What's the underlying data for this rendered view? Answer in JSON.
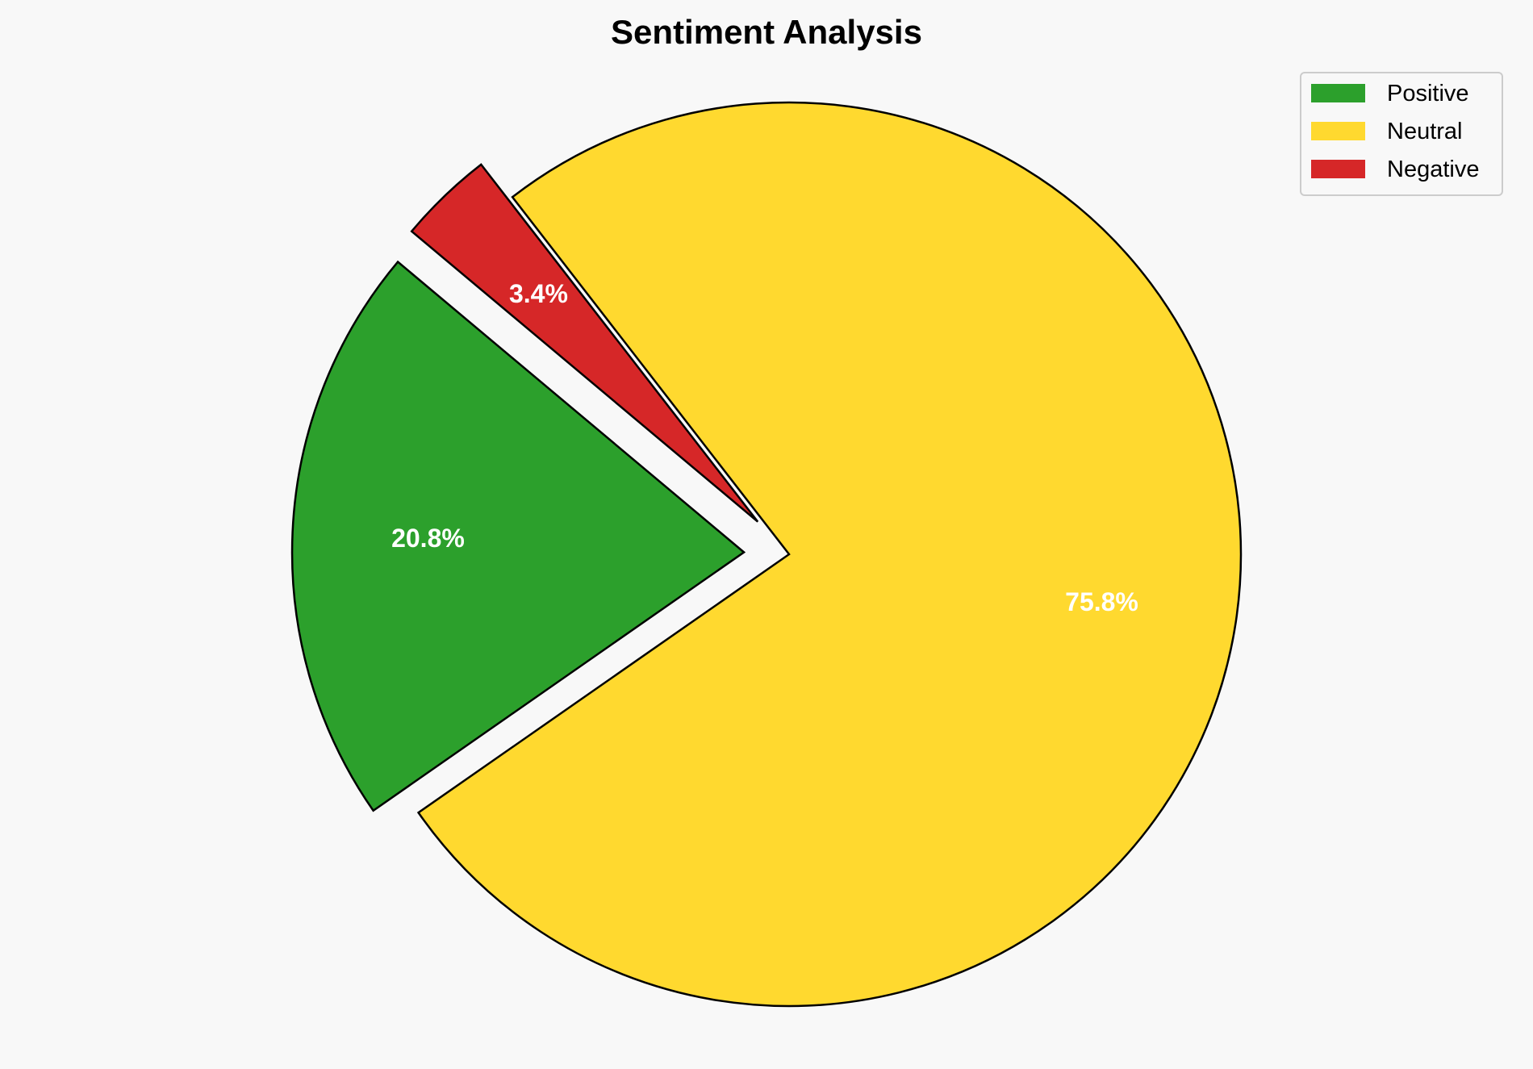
{
  "chart_data": {
    "type": "pie",
    "title": "Sentiment Analysis",
    "categories": [
      "Positive",
      "Neutral",
      "Negative"
    ],
    "values": [
      20.8,
      75.8,
      3.4
    ],
    "labels": [
      "20.8%",
      "75.8%",
      "3.4%"
    ],
    "colors": [
      "#2ca02c",
      "#ffd92f",
      "#d62728"
    ],
    "explode": [
      0.1,
      0,
      0.1
    ],
    "start_angle": 140,
    "direction": "counterclockwise",
    "edge_color": "#000000",
    "legend": {
      "placement": "top-right",
      "entries": [
        "Positive",
        "Neutral",
        "Negative"
      ]
    },
    "background": "#f8f8f8"
  }
}
